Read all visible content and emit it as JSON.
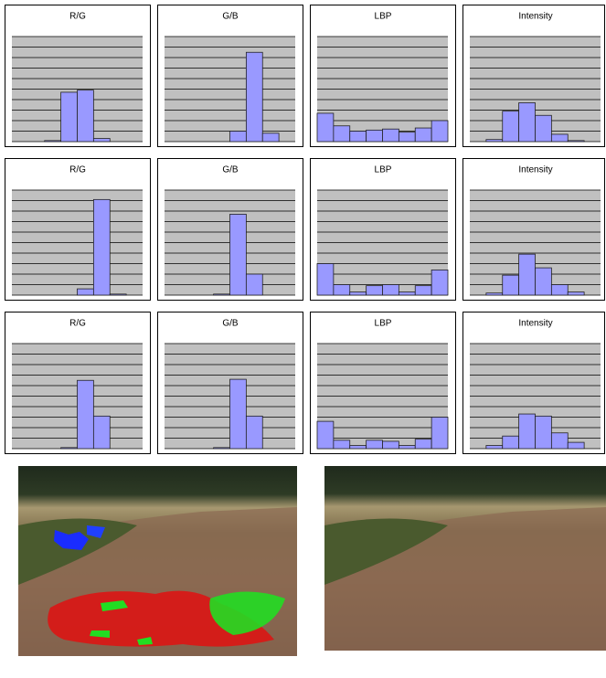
{
  "chart_data": [
    {
      "type": "bar",
      "title": "R/G",
      "categories": [
        null,
        null,
        null,
        null,
        null,
        null,
        null,
        null
      ],
      "values": [
        0,
        0,
        0.1,
        4.7,
        4.9,
        0.3,
        0,
        0
      ],
      "color": "#9999ff",
      "ylim": [
        0,
        10
      ],
      "yticks": [
        0,
        1,
        2,
        3,
        4,
        5,
        6,
        7,
        8,
        9,
        10
      ],
      "grid": true
    },
    {
      "type": "bar",
      "title": "G/B",
      "categories": [
        null,
        null,
        null,
        null,
        null,
        null,
        null,
        null
      ],
      "values": [
        0,
        0,
        0,
        0,
        1.0,
        8.5,
        0.8,
        0
      ],
      "color": "#9999ff",
      "ylim": [
        0,
        10
      ],
      "yticks": [
        0,
        1,
        2,
        3,
        4,
        5,
        6,
        7,
        8,
        9,
        10
      ],
      "grid": true
    },
    {
      "type": "bar",
      "title": "LBP",
      "categories": [
        null,
        null,
        null,
        null,
        null,
        null,
        null,
        null
      ],
      "values": [
        2.7,
        1.5,
        1.0,
        1.1,
        1.2,
        0.9,
        1.3,
        2.0
      ],
      "color": "#9999ff",
      "ylim": [
        0,
        10
      ],
      "yticks": [
        0,
        1,
        2,
        3,
        4,
        5,
        6,
        7,
        8,
        9,
        10
      ],
      "grid": true
    },
    {
      "type": "bar",
      "title": "Intensity",
      "categories": [
        null,
        null,
        null,
        null,
        null,
        null,
        null,
        null
      ],
      "values": [
        0,
        0.2,
        2.9,
        3.7,
        2.5,
        0.7,
        0.1,
        0
      ],
      "color": "#9999ff",
      "ylim": [
        0,
        10
      ],
      "yticks": [
        0,
        1,
        2,
        3,
        4,
        5,
        6,
        7,
        8,
        9,
        10
      ],
      "grid": true
    },
    {
      "type": "bar",
      "title": "R/G",
      "categories": [
        null,
        null,
        null,
        null,
        null,
        null,
        null,
        null
      ],
      "values": [
        0,
        0,
        0,
        0,
        0.6,
        9.1,
        0.1,
        0
      ],
      "color": "#9999ff",
      "ylim": [
        0,
        10
      ],
      "yticks": [
        0,
        1,
        2,
        3,
        4,
        5,
        6,
        7,
        8,
        9,
        10
      ],
      "grid": true
    },
    {
      "type": "bar",
      "title": "G/B",
      "categories": [
        null,
        null,
        null,
        null,
        null,
        null,
        null,
        null
      ],
      "values": [
        0,
        0,
        0,
        0.1,
        7.7,
        2.0,
        0,
        0
      ],
      "color": "#9999ff",
      "ylim": [
        0,
        10
      ],
      "yticks": [
        0,
        1,
        2,
        3,
        4,
        5,
        6,
        7,
        8,
        9,
        10
      ],
      "grid": true
    },
    {
      "type": "bar",
      "title": "LBP",
      "categories": [
        null,
        null,
        null,
        null,
        null,
        null,
        null,
        null
      ],
      "values": [
        3.0,
        1.0,
        0.3,
        0.9,
        1.0,
        0.3,
        0.9,
        2.4
      ],
      "color": "#9999ff",
      "ylim": [
        0,
        10
      ],
      "yticks": [
        0,
        1,
        2,
        3,
        4,
        5,
        6,
        7,
        8,
        9,
        10
      ],
      "grid": true
    },
    {
      "type": "bar",
      "title": "Intensity",
      "categories": [
        null,
        null,
        null,
        null,
        null,
        null,
        null,
        null
      ],
      "values": [
        0,
        0.2,
        1.9,
        3.9,
        2.6,
        1.0,
        0.3,
        0
      ],
      "color": "#9999ff",
      "ylim": [
        0,
        10
      ],
      "yticks": [
        0,
        1,
        2,
        3,
        4,
        5,
        6,
        7,
        8,
        9,
        10
      ],
      "grid": true
    },
    {
      "type": "bar",
      "title": "R/G",
      "categories": [
        null,
        null,
        null,
        null,
        null,
        null,
        null,
        null
      ],
      "values": [
        0,
        0,
        0,
        0.1,
        6.5,
        3.1,
        0,
        0
      ],
      "color": "#9999ff",
      "ylim": [
        0,
        10
      ],
      "yticks": [
        0,
        1,
        2,
        3,
        4,
        5,
        6,
        7,
        8,
        9,
        10
      ],
      "grid": true
    },
    {
      "type": "bar",
      "title": "G/B",
      "categories": [
        null,
        null,
        null,
        null,
        null,
        null,
        null,
        null
      ],
      "values": [
        0,
        0,
        0,
        0.1,
        6.6,
        3.1,
        0,
        0
      ],
      "color": "#9999ff",
      "ylim": [
        0,
        10
      ],
      "yticks": [
        0,
        1,
        2,
        3,
        4,
        5,
        6,
        7,
        8,
        9,
        10
      ],
      "grid": true
    },
    {
      "type": "bar",
      "title": "LBP",
      "categories": [
        null,
        null,
        null,
        null,
        null,
        null,
        null,
        null
      ],
      "values": [
        2.6,
        0.8,
        0.3,
        0.8,
        0.7,
        0.3,
        0.9,
        3.0
      ],
      "color": "#9999ff",
      "ylim": [
        0,
        10
      ],
      "yticks": [
        0,
        1,
        2,
        3,
        4,
        5,
        6,
        7,
        8,
        9,
        10
      ],
      "grid": true
    },
    {
      "type": "bar",
      "title": "Intensity",
      "categories": [
        null,
        null,
        null,
        null,
        null,
        null,
        null,
        null
      ],
      "values": [
        0,
        0.3,
        1.2,
        3.3,
        3.1,
        1.5,
        0.6,
        0
      ],
      "color": "#9999ff",
      "ylim": [
        0,
        10
      ],
      "yticks": [
        0,
        1,
        2,
        3,
        4,
        5,
        6,
        7,
        8,
        9,
        10
      ],
      "grid": true
    }
  ]
}
